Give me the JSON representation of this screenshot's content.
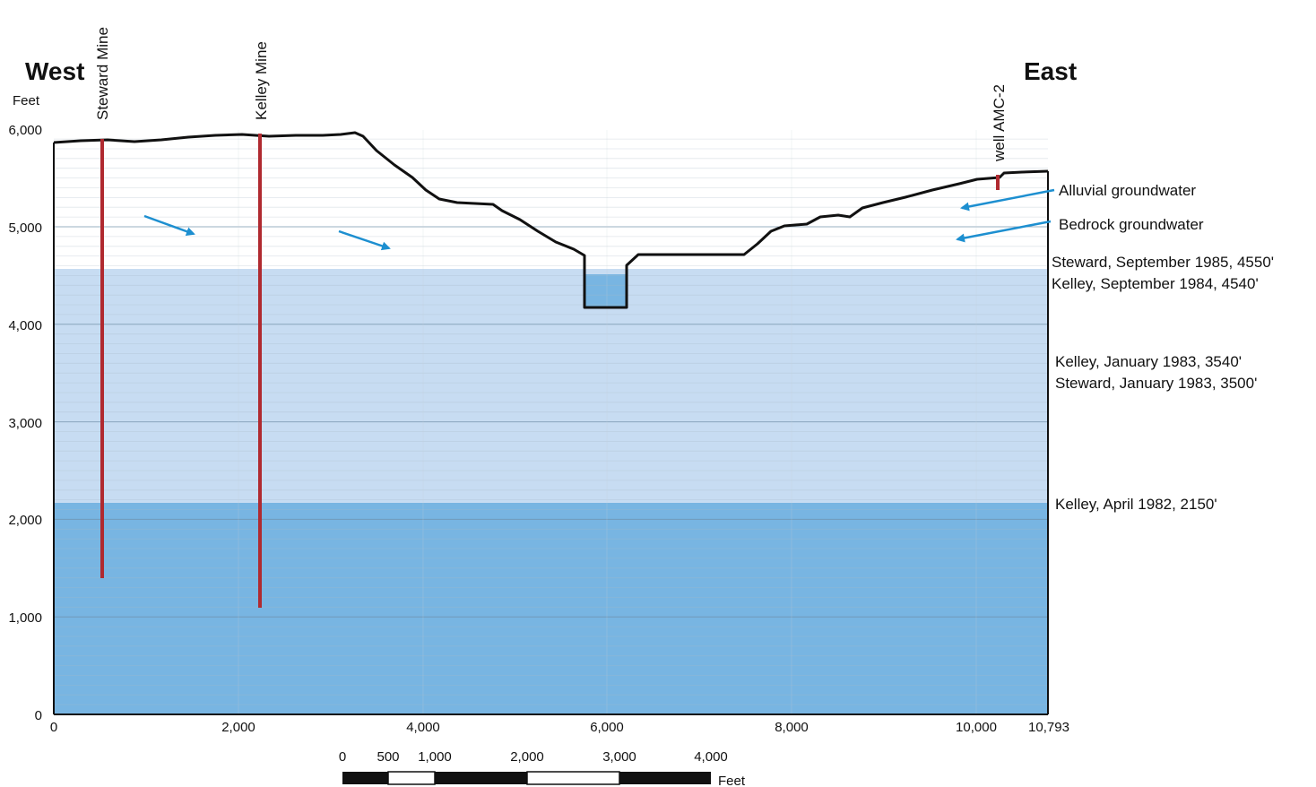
{
  "header": {
    "west": "West",
    "east": "East",
    "y_unit": "Feet"
  },
  "y_ticks": [
    "0",
    "1,000",
    "2,000",
    "3,000",
    "4,000",
    "5,000",
    "6,000"
  ],
  "x_ticks": [
    "0",
    "2,000",
    "4,000",
    "6,000",
    "8,000",
    "10,000",
    "10,793"
  ],
  "features": {
    "steward": "Steward Mine",
    "kelley": "Kelley Mine",
    "well": "well AMC-2"
  },
  "flow": {
    "alluvial": "Alluvial groundwater",
    "bedrock": "Bedrock groundwater"
  },
  "water_levels": [
    "Steward, September 1985, 4550'",
    "Kelley, September 1984, 4540'",
    "Kelley, January 1983, 3540'",
    "Steward, January 1983, 3500'",
    "Kelley, April 1982, 2150'"
  ],
  "scale_bar": {
    "ticks": [
      "0",
      "500",
      "1,000",
      "2,000",
      "3,000",
      "4,000"
    ],
    "unit": "Feet"
  },
  "colors": {
    "upper_water": "#c7dcf2",
    "lower_water": "#78b5e2",
    "mine_shaft": "#b02a30",
    "flow_arrow": "#1d8fd0",
    "terrain_line": "#111111"
  }
}
